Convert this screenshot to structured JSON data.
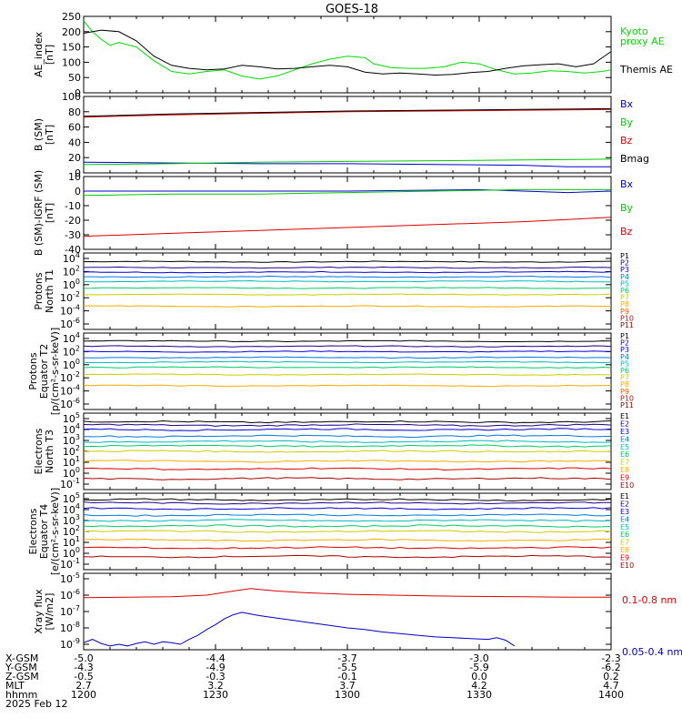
{
  "title": "GOES-18",
  "colors": {
    "kyoto": "#00dd00",
    "themis": "#000000",
    "bx": "#0000cc",
    "by": "#00cc00",
    "bz": "#dd0000",
    "bmag": "#000000",
    "xray_long": "#dd0000",
    "xray_short": "#0000cc"
  },
  "panels": [
    {
      "id": "ae",
      "ylabel_lines": [
        "AE_index",
        "[nT]"
      ],
      "yticks": [
        "250",
        "200",
        "150",
        "100",
        "50",
        "0"
      ],
      "legend": [
        {
          "text": "Kyoto",
          "color": "#00dd00"
        },
        {
          "text": "proxy AE",
          "color": "#00dd00"
        },
        {
          "text": "Themis AE",
          "color": "#000000"
        }
      ]
    },
    {
      "id": "b_sm",
      "ylabel_lines": [
        "B (SM)",
        "[nT]"
      ],
      "yticks": [
        "100",
        "80",
        "60",
        "40",
        "20",
        "0"
      ],
      "legend": [
        {
          "text": "Bx",
          "color": "#0000cc"
        },
        {
          "text": "By",
          "color": "#00cc00"
        },
        {
          "text": "Bz",
          "color": "#dd0000"
        },
        {
          "text": "Bmag",
          "color": "#000000"
        }
      ]
    },
    {
      "id": "b_igrf",
      "ylabel_lines": [
        "B (SM)-IGRF (SM)",
        "[nT]"
      ],
      "yticks": [
        "10",
        "0",
        "-10",
        "-20",
        "-30",
        "-40"
      ],
      "legend": [
        {
          "text": "Bx",
          "color": "#0000cc"
        },
        {
          "text": "By",
          "color": "#00cc00"
        },
        {
          "text": "Bz",
          "color": "#dd0000"
        }
      ]
    },
    {
      "id": "p_north",
      "ylabel_lines": [
        "Protons",
        "North T1"
      ],
      "ytick_exps": [
        "4",
        "2",
        "0",
        "-2",
        "-4",
        "-6"
      ],
      "legend": [
        {
          "text": "P1",
          "color": "#000000"
        },
        {
          "text": "P2",
          "color": "#220088"
        },
        {
          "text": "P3",
          "color": "#0000dd"
        },
        {
          "text": "P4",
          "color": "#0077dd"
        },
        {
          "text": "P5",
          "color": "#00bbbb"
        },
        {
          "text": "P6",
          "color": "#00cc66"
        },
        {
          "text": "P7",
          "color": "#cccc00"
        },
        {
          "text": "P8",
          "color": "#ffaa00"
        },
        {
          "text": "P9",
          "color": "#ff5500"
        },
        {
          "text": "P10",
          "color": "#dd0000"
        },
        {
          "text": "P11",
          "color": "#aa0000"
        }
      ]
    },
    {
      "id": "p_eq",
      "ylabel_lines": [
        "Protons",
        "Equator T2",
        "[p/(cm²-s-sr-keV)]"
      ],
      "ytick_exps": [
        "4",
        "2",
        "0",
        "-2",
        "-4",
        "-6"
      ],
      "legend": [
        {
          "text": "P1",
          "color": "#000000"
        },
        {
          "text": "P2",
          "color": "#220088"
        },
        {
          "text": "P3",
          "color": "#0000dd"
        },
        {
          "text": "P4",
          "color": "#0077dd"
        },
        {
          "text": "P5",
          "color": "#00bbbb"
        },
        {
          "text": "P6",
          "color": "#00cc66"
        },
        {
          "text": "P7",
          "color": "#cccc00"
        },
        {
          "text": "P8",
          "color": "#ffaa00"
        },
        {
          "text": "P9",
          "color": "#ff5500"
        },
        {
          "text": "P10",
          "color": "#dd0000"
        },
        {
          "text": "P11",
          "color": "#aa0000"
        }
      ]
    },
    {
      "id": "e_north",
      "ylabel_lines": [
        "Electrons",
        "North T3"
      ],
      "ytick_exps": [
        "5",
        "4",
        "3",
        "2",
        "1",
        "0",
        "-1"
      ],
      "legend": [
        {
          "text": "E1",
          "color": "#000000"
        },
        {
          "text": "E2",
          "color": "#220088"
        },
        {
          "text": "E3",
          "color": "#0000dd"
        },
        {
          "text": "E4",
          "color": "#0077dd"
        },
        {
          "text": "E5",
          "color": "#00bbbb"
        },
        {
          "text": "E6",
          "color": "#00cc66"
        },
        {
          "text": "E7",
          "color": "#cccc00"
        },
        {
          "text": "E8",
          "color": "#ffaa00"
        },
        {
          "text": "E9",
          "color": "#dd0000"
        },
        {
          "text": "E10",
          "color": "#aa0000"
        }
      ]
    },
    {
      "id": "e_eq",
      "ylabel_lines": [
        "Electrons",
        "Equator T4",
        "[e/(cm²-s-sr-keV)]"
      ],
      "ytick_exps": [
        "5",
        "4",
        "3",
        "2",
        "1",
        "0",
        "-1"
      ],
      "legend": [
        {
          "text": "E1",
          "color": "#000000"
        },
        {
          "text": "E2",
          "color": "#220088"
        },
        {
          "text": "E3",
          "color": "#0000dd"
        },
        {
          "text": "E4",
          "color": "#0077dd"
        },
        {
          "text": "E5",
          "color": "#00bbbb"
        },
        {
          "text": "E6",
          "color": "#00cc66"
        },
        {
          "text": "E7",
          "color": "#cccc00"
        },
        {
          "text": "E8",
          "color": "#ffaa00"
        },
        {
          "text": "E9",
          "color": "#dd0000"
        },
        {
          "text": "E10",
          "color": "#aa0000"
        }
      ]
    },
    {
      "id": "xray",
      "ylabel_lines": [
        "Xray flux",
        "[W/m2]"
      ],
      "ytick_exps": [
        "-5",
        "-6",
        "-7",
        "-8",
        "-9"
      ],
      "legend": [
        {
          "text": "0.1-0.8 nm",
          "color": "#dd0000"
        },
        {
          "text": "0.05-0.4 nm",
          "color": "#0000cc"
        }
      ]
    }
  ],
  "footer": {
    "rows": [
      {
        "label": "X-GSM",
        "values": [
          "-5.0",
          "-4.4",
          "-3.7",
          "-3.0",
          "-2.3"
        ]
      },
      {
        "label": "Y-GSM",
        "values": [
          "-4.3",
          "-4.9",
          "-5.5",
          "-5.9",
          "-6.2"
        ]
      },
      {
        "label": "Z-GSM",
        "values": [
          "-0.5",
          "-0.3",
          "-0.1",
          "0.0",
          "0.2"
        ]
      },
      {
        "label": "MLT",
        "values": [
          "2.7",
          "3.2",
          "3.7",
          "4.2",
          "4.7"
        ]
      },
      {
        "label": "hhmm",
        "values": [
          "1200",
          "1230",
          "1300",
          "1330",
          "1400"
        ]
      }
    ],
    "date": "2025 Feb 12"
  },
  "chart_data": [
    {
      "type": "line",
      "panel": "ae",
      "x_unit": "minutes after 1200 UT",
      "ylim": [
        0,
        250
      ],
      "series": [
        {
          "name": "Kyoto proxy AE",
          "x": [
            0,
            2,
            4,
            6,
            8,
            12,
            16,
            20,
            24,
            28,
            32,
            36,
            40,
            44,
            48,
            52,
            56,
            60,
            64,
            66,
            70,
            74,
            78,
            82,
            86,
            90,
            94,
            98,
            102,
            106,
            110,
            114,
            118,
            120
          ],
          "y": [
            235,
            200,
            175,
            155,
            165,
            150,
            105,
            70,
            62,
            70,
            75,
            55,
            45,
            55,
            75,
            95,
            110,
            120,
            115,
            95,
            82,
            80,
            80,
            85,
            100,
            95,
            75,
            62,
            65,
            72,
            70,
            65,
            70,
            75
          ]
        },
        {
          "name": "Themis AE",
          "x": [
            0,
            4,
            8,
            12,
            16,
            20,
            24,
            28,
            32,
            36,
            40,
            44,
            48,
            52,
            56,
            60,
            64,
            68,
            72,
            76,
            80,
            84,
            88,
            92,
            96,
            100,
            104,
            108,
            112,
            116,
            120
          ],
          "y": [
            195,
            205,
            200,
            170,
            120,
            90,
            80,
            75,
            78,
            90,
            85,
            78,
            80,
            85,
            90,
            85,
            68,
            62,
            65,
            62,
            58,
            60,
            66,
            70,
            80,
            88,
            92,
            95,
            85,
            95,
            135
          ]
        }
      ]
    },
    {
      "type": "line",
      "panel": "b_sm",
      "ylim": [
        0,
        100
      ],
      "series": [
        {
          "name": "Bx",
          "x": [
            0,
            20,
            40,
            60,
            80,
            100,
            110,
            120
          ],
          "y": [
            14,
            13,
            12,
            12,
            11,
            10,
            8,
            8
          ]
        },
        {
          "name": "By",
          "x": [
            0,
            20,
            40,
            60,
            80,
            100,
            120
          ],
          "y": [
            11,
            12,
            14,
            15,
            16,
            17,
            18
          ]
        },
        {
          "name": "Bz",
          "x": [
            0,
            20,
            40,
            60,
            80,
            100,
            120
          ],
          "y": [
            73,
            76,
            78,
            80,
            81,
            82,
            83
          ]
        },
        {
          "name": "Bmag",
          "x": [
            0,
            20,
            40,
            60,
            80,
            100,
            120
          ],
          "y": [
            74,
            77,
            79,
            81,
            82,
            83,
            84
          ]
        }
      ]
    },
    {
      "type": "line",
      "panel": "b_igrf",
      "ylim": [
        -40,
        10
      ],
      "series": [
        {
          "name": "Bx",
          "x": [
            0,
            30,
            60,
            90,
            100,
            110,
            120
          ],
          "y": [
            0,
            0,
            0,
            1,
            0,
            -1,
            0
          ]
        },
        {
          "name": "By",
          "x": [
            0,
            20,
            40,
            60,
            80,
            100,
            120
          ],
          "y": [
            -3,
            -2,
            -2,
            -1,
            0,
            1,
            1
          ]
        },
        {
          "name": "Bz",
          "x": [
            0,
            20,
            40,
            60,
            80,
            100,
            120
          ],
          "y": [
            -31,
            -29,
            -27,
            -25,
            -23,
            -21,
            -18
          ]
        }
      ]
    },
    {
      "type": "line",
      "panel": "p_north",
      "yscale": "log10",
      "ylim_exp": [
        -6,
        4
      ],
      "series": [
        {
          "name": "P1",
          "log10_level": 3.5
        },
        {
          "name": "P2",
          "log10_level": 2.6
        },
        {
          "name": "P3",
          "log10_level": 1.9
        },
        {
          "name": "P4",
          "log10_level": 1.2
        },
        {
          "name": "P5",
          "log10_level": 0.5
        },
        {
          "name": "P6",
          "log10_level": -0.5
        },
        {
          "name": "P7",
          "log10_level": -1.5
        },
        {
          "name": "P8",
          "log10_level": -3.3
        }
      ]
    },
    {
      "type": "line",
      "panel": "p_eq",
      "yscale": "log10",
      "ylim_exp": [
        -6,
        4
      ],
      "series": [
        {
          "name": "P1",
          "log10_level": 3.6
        },
        {
          "name": "P2",
          "log10_level": 2.8
        },
        {
          "name": "P3",
          "log10_level": 2.0
        },
        {
          "name": "P4",
          "log10_level": 1.1
        },
        {
          "name": "P5",
          "log10_level": 0.4
        },
        {
          "name": "P6",
          "log10_level": -0.4
        },
        {
          "name": "P7",
          "log10_level": -1.5
        },
        {
          "name": "P8",
          "log10_level": -3.2
        }
      ]
    },
    {
      "type": "line",
      "panel": "e_north",
      "yscale": "log10",
      "ylim_exp": [
        -1,
        5
      ],
      "series": [
        {
          "name": "E1",
          "log10_level": 4.7
        },
        {
          "name": "E2",
          "log10_level": 4.4
        },
        {
          "name": "E3",
          "log10_level": 4.0
        },
        {
          "name": "E4",
          "log10_level": 3.4
        },
        {
          "name": "E5",
          "log10_level": 2.9
        },
        {
          "name": "E6",
          "log10_level": 2.5
        },
        {
          "name": "E7",
          "log10_level": 2.0
        },
        {
          "name": "E8",
          "log10_level": 1.1
        },
        {
          "name": "E9",
          "log10_level": 0.4
        },
        {
          "name": "E10",
          "log10_level": -0.5
        }
      ]
    },
    {
      "type": "line",
      "panel": "e_eq",
      "yscale": "log10",
      "ylim_exp": [
        -1,
        5
      ],
      "series": [
        {
          "name": "E1",
          "log10_level": 4.9
        },
        {
          "name": "E2",
          "log10_level": 4.6
        },
        {
          "name": "E3",
          "log10_level": 4.1
        },
        {
          "name": "E4",
          "log10_level": 3.5
        },
        {
          "name": "E5",
          "log10_level": 3.0
        },
        {
          "name": "E6",
          "log10_level": 2.5
        },
        {
          "name": "E7",
          "log10_level": 2.0
        },
        {
          "name": "E8",
          "log10_level": 1.2
        },
        {
          "name": "E9",
          "log10_level": 0.5
        },
        {
          "name": "E10",
          "log10_level": -0.3
        }
      ]
    },
    {
      "type": "line",
      "panel": "xray",
      "yscale": "log10",
      "ylim_exp": [
        -9,
        -5
      ],
      "series": [
        {
          "name": "0.1-0.8 nm",
          "x": [
            0,
            10,
            20,
            28,
            34,
            38,
            40,
            44,
            50,
            60,
            70,
            80,
            90,
            100,
            110,
            120
          ],
          "y_log10": [
            -6.15,
            -6.12,
            -6.1,
            -6.0,
            -5.75,
            -5.6,
            -5.65,
            -5.75,
            -5.85,
            -5.95,
            -6.0,
            -6.05,
            -6.08,
            -6.1,
            -6.12,
            -6.12
          ]
        },
        {
          "name": "0.05-0.4 nm",
          "x": [
            0,
            2,
            4,
            6,
            8,
            10,
            12,
            14,
            16,
            18,
            20,
            22,
            24,
            26,
            28,
            30,
            32,
            34,
            36,
            38,
            40,
            44,
            48,
            52,
            56,
            60,
            64,
            68,
            72,
            76,
            80,
            84,
            88,
            92,
            94,
            96,
            98
          ],
          "y_log10": [
            -8.9,
            -8.7,
            -8.95,
            -9.1,
            -9.0,
            -9.1,
            -8.95,
            -8.85,
            -9.0,
            -8.85,
            -8.9,
            -9.0,
            -8.7,
            -8.45,
            -8.1,
            -7.8,
            -7.45,
            -7.2,
            -7.05,
            -7.15,
            -7.25,
            -7.4,
            -7.55,
            -7.7,
            -7.85,
            -8.0,
            -8.1,
            -8.25,
            -8.35,
            -8.45,
            -8.55,
            -8.6,
            -8.65,
            -8.7,
            -8.6,
            -8.75,
            -9.1
          ]
        }
      ]
    }
  ]
}
